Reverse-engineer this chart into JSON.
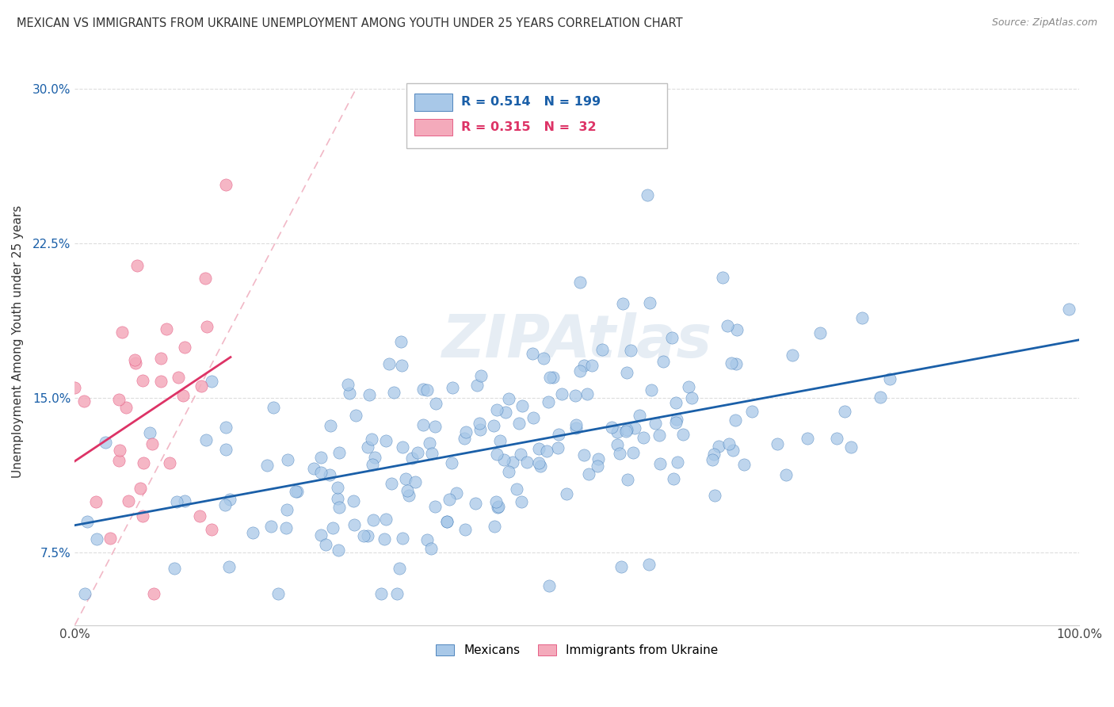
{
  "title": "MEXICAN VS IMMIGRANTS FROM UKRAINE UNEMPLOYMENT AMONG YOUTH UNDER 25 YEARS CORRELATION CHART",
  "source": "Source: ZipAtlas.com",
  "ylabel": "Unemployment Among Youth under 25 years",
  "xlim": [
    0.0,
    1.0
  ],
  "ylim": [
    0.04,
    0.315
  ],
  "yticks": [
    0.075,
    0.15,
    0.225,
    0.3
  ],
  "yticklabels": [
    "7.5%",
    "15.0%",
    "22.5%",
    "30.0%"
  ],
  "blue_R": 0.514,
  "blue_N": 199,
  "pink_R": 0.315,
  "pink_N": 32,
  "blue_color": "#a8c8e8",
  "pink_color": "#f4aabb",
  "blue_line_color": "#1a5fa8",
  "pink_line_color": "#dd3366",
  "diag_line_color": "#f0b0c0",
  "legend_label_blue": "Mexicans",
  "legend_label_pink": "Immigrants from Ukraine",
  "watermark": "ZIPAtlas",
  "background_color": "#ffffff",
  "grid_color": "#dddddd"
}
